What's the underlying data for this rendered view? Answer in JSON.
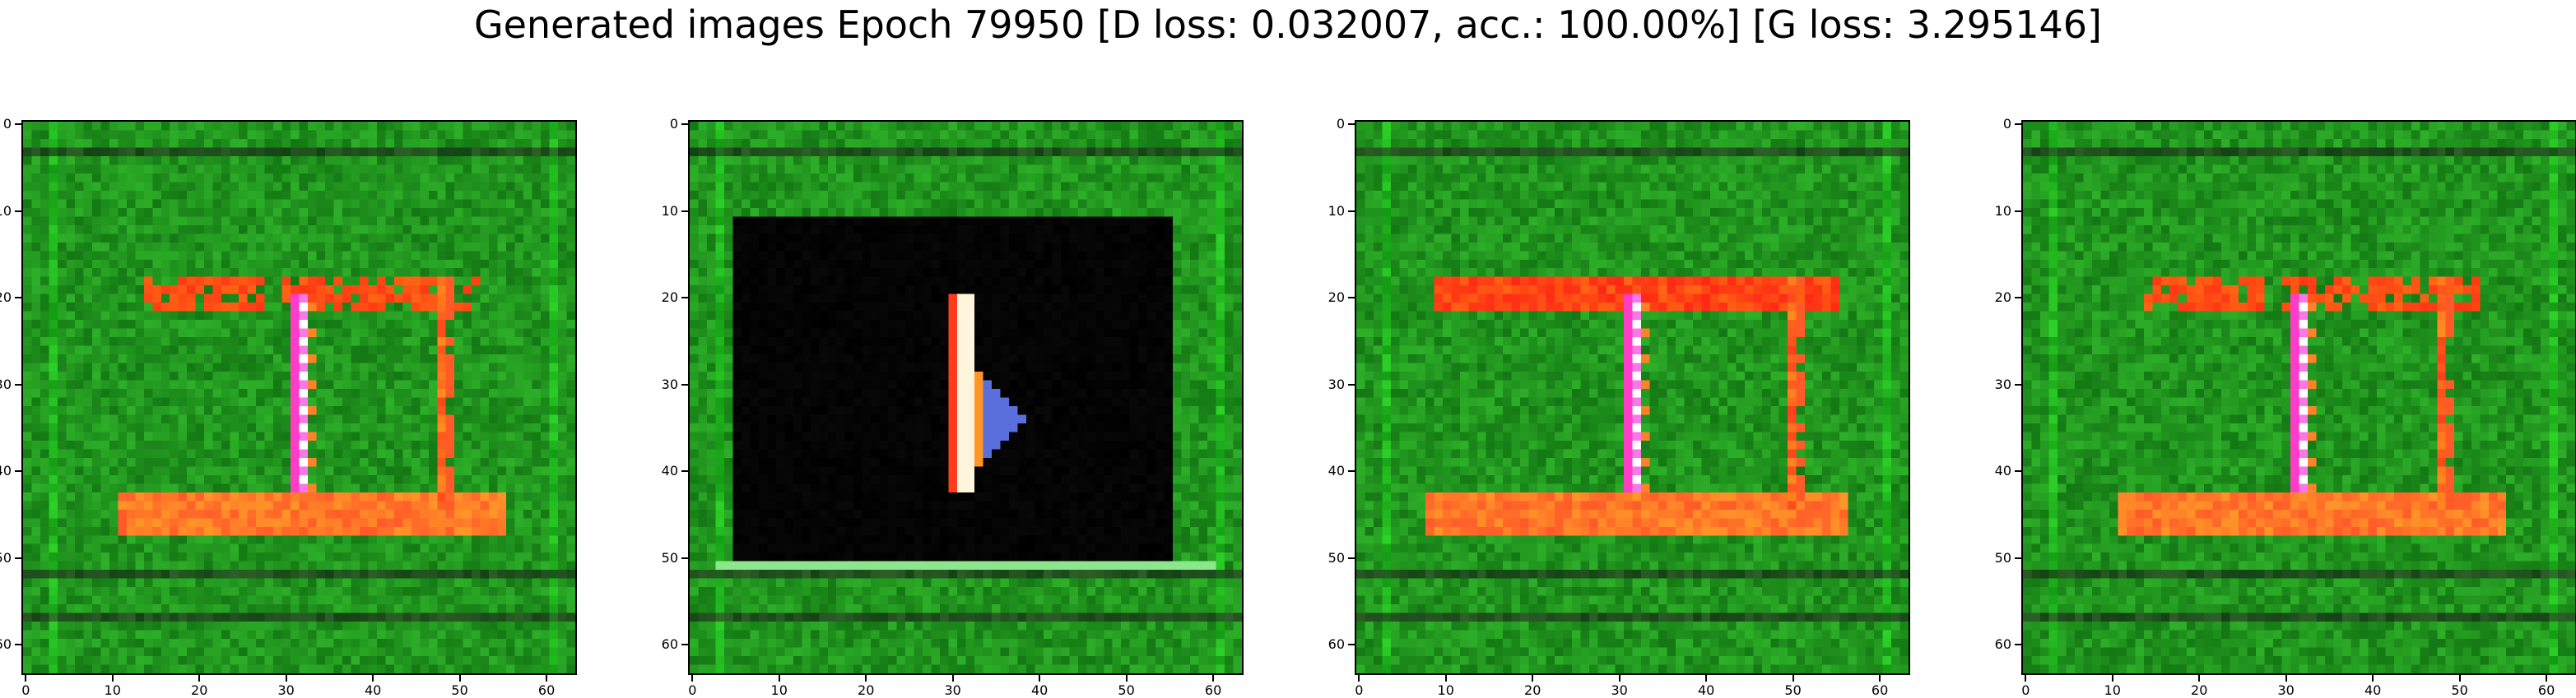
{
  "figure": {
    "suptitle": "Generated images Epoch 79950 [D loss: 0.032007, acc.: 100.00%] [G loss: 3.295146]"
  },
  "chart_data": [
    {
      "type": "heatmap",
      "xlim": [
        0,
        63
      ],
      "ylim": [
        63,
        0
      ],
      "xticks": [
        "0",
        "10",
        "20",
        "30",
        "40",
        "50",
        "60"
      ],
      "yticks": [
        "0",
        "10",
        "20",
        "30",
        "40",
        "50",
        "60"
      ],
      "variant": "frame",
      "grid": false
    },
    {
      "type": "heatmap",
      "xlim": [
        0,
        63
      ],
      "ylim": [
        63,
        0
      ],
      "xticks": [
        "0",
        "10",
        "20",
        "30",
        "40",
        "50",
        "60"
      ],
      "yticks": [
        "0",
        "10",
        "20",
        "30",
        "40",
        "50",
        "60"
      ],
      "variant": "arrow",
      "grid": false
    },
    {
      "type": "heatmap",
      "xlim": [
        0,
        63
      ],
      "ylim": [
        63,
        0
      ],
      "xticks": [
        "0",
        "10",
        "20",
        "30",
        "40",
        "50",
        "60"
      ],
      "yticks": [
        "0",
        "10",
        "20",
        "30",
        "40",
        "50",
        "60"
      ],
      "variant": "frame-bold",
      "grid": false
    },
    {
      "type": "heatmap",
      "xlim": [
        0,
        63
      ],
      "ylim": [
        63,
        0
      ],
      "xticks": [
        "0",
        "10",
        "20",
        "30",
        "40",
        "50",
        "60"
      ],
      "yticks": [
        "0",
        "10",
        "20",
        "30",
        "40",
        "50",
        "60"
      ],
      "variant": "frame",
      "grid": false
    }
  ],
  "colors": {
    "bg_green": "#1e8c23",
    "red": "#ff2a1a",
    "orange": "#ff7a2a",
    "black": "#000000",
    "magenta": "#ff2ad6"
  }
}
